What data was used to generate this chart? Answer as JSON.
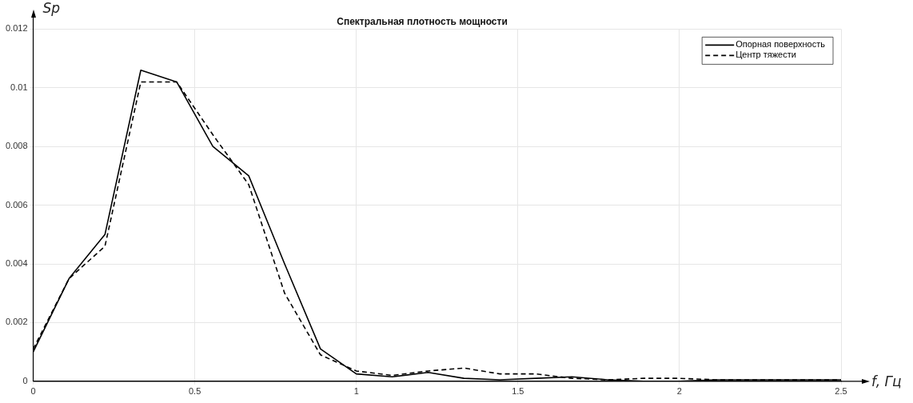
{
  "chart_data": {
    "type": "line",
    "title": "Спектральная плотность мощности",
    "xlabel": "f, Гц",
    "ylabel": "Sp",
    "x": [
      0,
      0.111,
      0.222,
      0.333,
      0.444,
      0.556,
      0.667,
      0.778,
      0.889,
      1.0,
      1.111,
      1.222,
      1.333,
      1.444,
      1.556,
      1.667,
      1.778,
      1.889,
      2.0,
      2.111,
      2.222,
      2.333,
      2.444,
      2.5
    ],
    "series": [
      {
        "name": "Опорная поверхность",
        "color": "#000000",
        "line_style": "solid",
        "values": [
          0.001,
          0.0035,
          0.005,
          0.0106,
          0.0102,
          0.008,
          0.007,
          0.004,
          0.0011,
          0.00025,
          0.00015,
          0.0003,
          0.0001,
          5e-05,
          0.0001,
          0.00015,
          5e-05,
          0,
          0,
          5e-05,
          5e-05,
          5e-05,
          5e-05,
          5e-05
        ]
      },
      {
        "name": "Центр тяжести",
        "color": "#000000",
        "line_style": "dashed",
        "values": [
          0.0011,
          0.0035,
          0.0046,
          0.0102,
          0.0102,
          0.0084,
          0.0067,
          0.003,
          0.0009,
          0.00035,
          0.0002,
          0.00035,
          0.00045,
          0.00025,
          0.00025,
          0.0001,
          5e-05,
          0.0001,
          0.0001,
          5e-05,
          5e-05,
          5e-05,
          5e-05,
          5e-05
        ]
      }
    ],
    "xlim": [
      0,
      2.5
    ],
    "xticks": [
      0,
      0.5,
      1,
      1.5,
      2,
      2.5
    ],
    "ylim": [
      0,
      0.012
    ],
    "yticks": [
      0,
      0.002,
      0.004,
      0.006,
      0.008,
      0.01,
      0.012
    ],
    "grid": true,
    "legend": "top right",
    "marker": "none"
  }
}
